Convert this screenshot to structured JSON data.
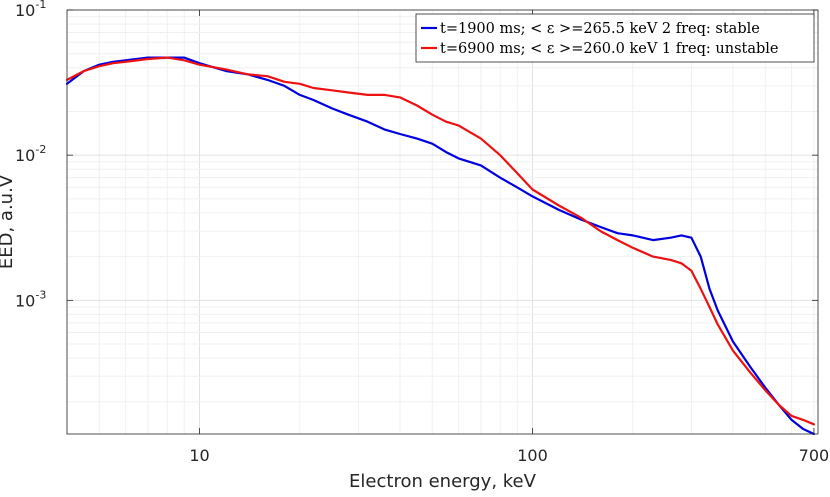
{
  "chart_data": {
    "type": "line",
    "xscale": "log",
    "yscale": "log",
    "xlabel": "Electron energy, keV",
    "ylabel": "EED, a.u.V",
    "xlim": [
      4.0,
      720
    ],
    "ylim": [
      0.00012,
      0.1
    ],
    "xticks": [
      {
        "value": 10,
        "label": "10"
      },
      {
        "value": 100,
        "label": "100"
      },
      {
        "value": 700,
        "label": "700"
      }
    ],
    "yticks": [
      {
        "value": 0.1,
        "base": "10",
        "exp": "-1"
      },
      {
        "value": 0.01,
        "base": "10",
        "exp": "-2"
      },
      {
        "value": 0.001,
        "base": "10",
        "exp": "-3"
      }
    ],
    "grid": true,
    "legend_position": "top-right",
    "series": [
      {
        "name": "t=1900 ms; < ε >=265.5 keV 2 freq: stable",
        "color": "#0000e0",
        "x": [
          4.0,
          4.5,
          5.0,
          5.5,
          6.0,
          7.0,
          8.0,
          9.0,
          10.0,
          12.0,
          14.0,
          16.0,
          18.0,
          20.0,
          22.0,
          25.0,
          28.0,
          32.0,
          36.0,
          40.0,
          45.0,
          50.0,
          55.0,
          60.0,
          70.0,
          80.0,
          90.0,
          100.0,
          120.0,
          140.0,
          160.0,
          180.0,
          200.0,
          230.0,
          260.0,
          280.0,
          300.0,
          320.0,
          340.0,
          360.0,
          400.0,
          450.0,
          500.0,
          550.0,
          600.0,
          650.0,
          700.0
        ],
        "values": [
          0.031,
          0.038,
          0.042,
          0.044,
          0.045,
          0.047,
          0.047,
          0.047,
          0.043,
          0.038,
          0.036,
          0.033,
          0.03,
          0.026,
          0.024,
          0.021,
          0.019,
          0.017,
          0.015,
          0.014,
          0.013,
          0.012,
          0.0105,
          0.0095,
          0.0085,
          0.007,
          0.006,
          0.0052,
          0.0042,
          0.0036,
          0.0032,
          0.0029,
          0.0028,
          0.0026,
          0.0027,
          0.0028,
          0.0027,
          0.002,
          0.0012,
          0.00085,
          0.00052,
          0.00035,
          0.00025,
          0.00019,
          0.00015,
          0.00013,
          0.00012
        ]
      },
      {
        "name": "t=6900 ms; < ε >=260.0 keV 1 freq: unstable",
        "color": "#ee1111",
        "x": [
          4.0,
          4.5,
          5.0,
          5.5,
          6.0,
          7.0,
          8.0,
          9.0,
          10.0,
          12.0,
          14.0,
          16.0,
          18.0,
          20.0,
          22.0,
          25.0,
          28.0,
          32.0,
          36.0,
          40.0,
          45.0,
          50.0,
          55.0,
          60.0,
          70.0,
          80.0,
          90.0,
          100.0,
          120.0,
          140.0,
          160.0,
          180.0,
          200.0,
          230.0,
          260.0,
          280.0,
          300.0,
          320.0,
          340.0,
          360.0,
          400.0,
          450.0,
          500.0,
          550.0,
          600.0,
          650.0,
          700.0
        ],
        "values": [
          0.033,
          0.038,
          0.041,
          0.043,
          0.044,
          0.046,
          0.047,
          0.045,
          0.042,
          0.039,
          0.036,
          0.035,
          0.032,
          0.031,
          0.029,
          0.028,
          0.027,
          0.026,
          0.026,
          0.025,
          0.022,
          0.019,
          0.017,
          0.016,
          0.013,
          0.01,
          0.0075,
          0.0058,
          0.0045,
          0.0037,
          0.003,
          0.0026,
          0.0023,
          0.002,
          0.0019,
          0.0018,
          0.0016,
          0.0012,
          0.0009,
          0.00068,
          0.00045,
          0.00032,
          0.00024,
          0.00019,
          0.00016,
          0.00015,
          0.00014
        ]
      }
    ]
  }
}
